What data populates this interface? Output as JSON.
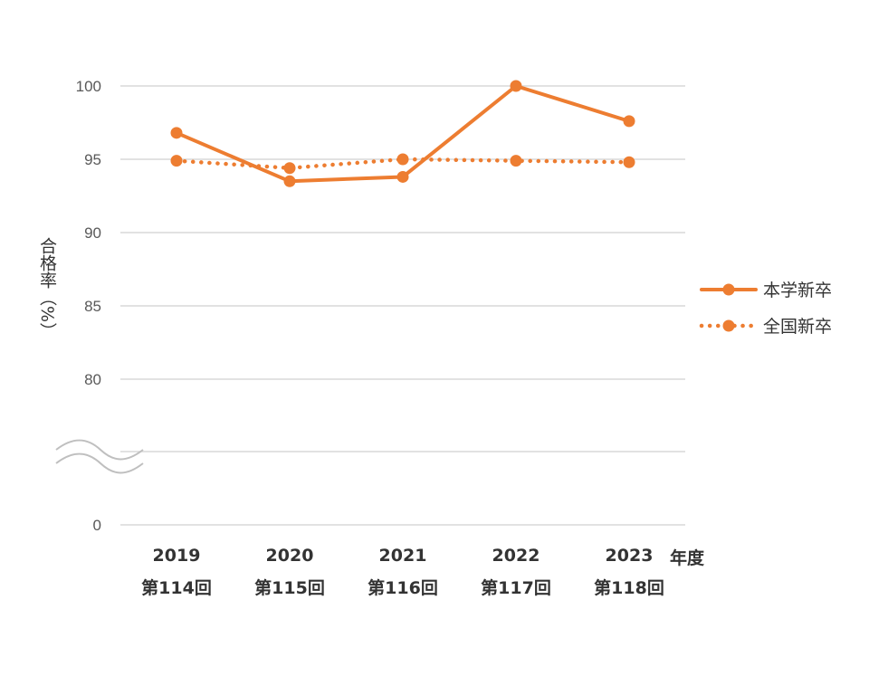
{
  "chart_data": {
    "type": "line",
    "categories": [
      "2019",
      "2020",
      "2021",
      "2022",
      "2023"
    ],
    "category_sublabels": [
      "第114回",
      "第115回",
      "第116回",
      "第117回",
      "第118回"
    ],
    "x_unit": "年度",
    "ylabel": "合格率（%）",
    "y_ticks": [
      "100",
      "95",
      "90",
      "85",
      "80",
      "0"
    ],
    "axis_break": true,
    "series": [
      {
        "name": "本学新卒",
        "style": "solid",
        "color": "#ED7D31",
        "values": [
          96.8,
          93.5,
          93.8,
          100,
          97.6
        ]
      },
      {
        "name": "全国新卒",
        "style": "dotted",
        "color": "#ED7D31",
        "values": [
          94.9,
          94.4,
          95.0,
          94.9,
          94.8
        ]
      }
    ],
    "legend_position": "right",
    "grid": true
  }
}
